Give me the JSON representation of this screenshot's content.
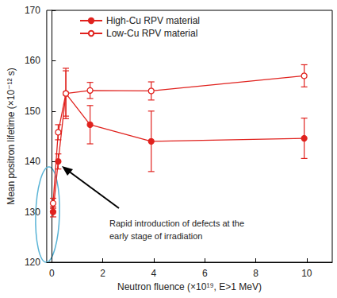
{
  "chart_data": {
    "type": "line",
    "x_label": "Neutron fluence (×10¹⁹, E>1 MeV)",
    "y_label": "Mean positron lifetime (×10⁻¹² s)",
    "annotation": "Rapid introduction of defects at the\nearly stage of irradiation",
    "xlim": [
      -0.2,
      11
    ],
    "xticks": [
      0,
      2,
      4,
      6,
      8,
      10
    ],
    "ylim": [
      120,
      170
    ],
    "yticks": [
      120,
      130,
      140,
      150,
      160,
      170
    ],
    "grid": false,
    "legend": "upper left",
    "series": [
      {
        "name": "High-Cu RPV material",
        "color": "#e0221e",
        "marker": "circle",
        "x": [
          0.05,
          0.25,
          0.55,
          1.5,
          3.9,
          9.9
        ],
        "values": [
          130,
          140,
          153.5,
          147.3,
          144,
          144.6
        ],
        "errors": [
          1,
          1.5,
          4.5,
          3.8,
          6,
          4
        ]
      },
      {
        "name": "Low-Cu RPV material",
        "color": "#e0221e",
        "marker": "open_circle",
        "x": [
          0.05,
          0.25,
          0.55,
          1.5,
          3.9,
          9.9
        ],
        "values": [
          131.7,
          145.8,
          153.5,
          154.1,
          154,
          157
        ],
        "errors": [
          1,
          1.5,
          5,
          1.6,
          1.8,
          2.2
        ]
      }
    ]
  }
}
